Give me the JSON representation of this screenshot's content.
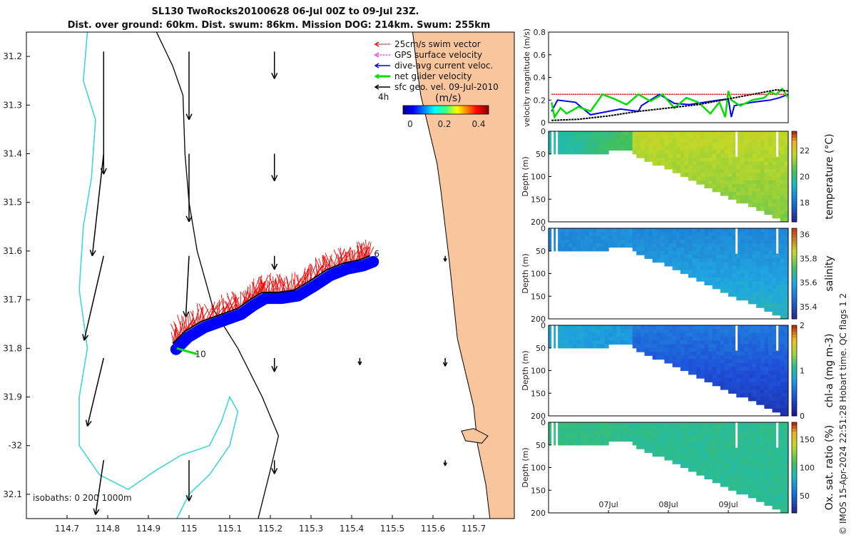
{
  "colors": {
    "land": "#f9c59c",
    "iso0": "#000000",
    "iso200": "#000000",
    "iso1000": "#3ed6e0",
    "swim": "#ff0000",
    "gps": "#ff33ff",
    "dac": "#0000ff",
    "net": "#00e000",
    "geo": "#000000"
  },
  "chart_data": [
    {
      "type": "map",
      "title_line1": "SL130 TwoRocks20100628 06-Jul 00Z to 09-Jul 23Z.",
      "title_line2": "Dist. over ground: 60km. Dist. swum: 86km. Mission DOG: 214km. Swum: 255km",
      "xlim": [
        114.6,
        115.8
      ],
      "ylim": [
        -32.15,
        -31.15
      ],
      "xticks": [
        114.7,
        114.8,
        114.9,
        115.0,
        115.1,
        115.2,
        115.3,
        115.4,
        115.5,
        115.6,
        115.7
      ],
      "xtick_labels": [
        "114.7",
        "114.8",
        "114.9",
        "115",
        "115.1",
        "115.2",
        "115.3",
        "115.4",
        "115.5",
        "115.6",
        "115.7"
      ],
      "yticks": [
        -31.2,
        -31.3,
        -31.4,
        -31.5,
        -31.6,
        -31.7,
        -31.8,
        -31.9,
        -32.0,
        -32.1
      ],
      "ytick_labels": [
        "31.2",
        "31.3",
        "31.4",
        "31.5",
        "31.6",
        "31.7",
        "31.8",
        "31.9",
        "-32",
        "32.1"
      ],
      "legend": [
        {
          "label": "25cm/s swim vector",
          "color": "#ff0000"
        },
        {
          "label": "GPS surface velocity",
          "color": "#ff33ff"
        },
        {
          "label": "dive-avg current veloc.",
          "color": "#0000ff"
        },
        {
          "label": "net glider velocity",
          "color": "#00e000"
        },
        {
          "label": "sfc geo. vel. 09-Jul-2010",
          "color": "#000000"
        }
      ],
      "legend_extra": "4h",
      "colorbar": {
        "label": "(m/s)",
        "ticks": [
          0,
          0.2,
          0.4
        ],
        "tick_labels": [
          "0",
          "0.2",
          "0.4"
        ],
        "range": [
          0,
          0.5
        ]
      },
      "isobath_label": "isobaths: 0   200  1000m",
      "track": [
        [
          114.96,
          -31.79
        ],
        [
          114.99,
          -31.765
        ],
        [
          115.03,
          -31.745
        ],
        [
          115.08,
          -31.73
        ],
        [
          115.12,
          -31.718
        ],
        [
          115.15,
          -31.7
        ],
        [
          115.18,
          -31.685
        ],
        [
          115.22,
          -31.685
        ],
        [
          115.26,
          -31.68
        ],
        [
          115.3,
          -31.66
        ],
        [
          115.34,
          -31.638
        ],
        [
          115.38,
          -31.625
        ],
        [
          115.42,
          -31.618
        ],
        [
          115.445,
          -31.61
        ]
      ],
      "track_labels": [
        {
          "label": "6",
          "lon": 115.455,
          "lat": -31.606
        },
        {
          "label": "10",
          "lon": 115.015,
          "lat": -31.812
        }
      ],
      "net_vector": {
        "lon0": 114.97,
        "lat0": -31.8,
        "lon1": 115.02,
        "lat1": -31.812
      },
      "geo_arrows": [
        {
          "lon": 114.79,
          "lat": -31.19,
          "u": 0.0,
          "v": -0.09
        },
        {
          "lon": 114.79,
          "lat": -31.4,
          "u": -0.007,
          "v": -0.075
        },
        {
          "lon": 114.79,
          "lat": -31.61,
          "u": -0.012,
          "v": -0.062
        },
        {
          "lon": 114.79,
          "lat": -31.82,
          "u": -0.01,
          "v": -0.05
        },
        {
          "lon": 114.79,
          "lat": -32.03,
          "u": -0.005,
          "v": -0.04
        },
        {
          "lon": 115.0,
          "lat": -31.19,
          "u": 0.0,
          "v": -0.05
        },
        {
          "lon": 115.0,
          "lat": -31.4,
          "u": 0.0,
          "v": -0.05
        },
        {
          "lon": 115.0,
          "lat": -31.61,
          "u": -0.002,
          "v": -0.045
        },
        {
          "lon": 115.0,
          "lat": -32.03,
          "u": 0.0,
          "v": -0.03
        },
        {
          "lon": 115.21,
          "lat": -31.19,
          "u": 0.0,
          "v": -0.02
        },
        {
          "lon": 115.21,
          "lat": -31.4,
          "u": 0.0,
          "v": -0.02
        },
        {
          "lon": 115.21,
          "lat": -31.61,
          "u": 0.0,
          "v": -0.01
        },
        {
          "lon": 115.21,
          "lat": -31.82,
          "u": 0.0,
          "v": -0.01
        },
        {
          "lon": 115.21,
          "lat": -32.03,
          "u": 0.0,
          "v": -0.01
        },
        {
          "lon": 115.42,
          "lat": -31.82,
          "u": 0.0,
          "v": -0.005
        },
        {
          "lon": 115.63,
          "lat": -31.61,
          "u": 0.0,
          "v": -0.004
        },
        {
          "lon": 115.63,
          "lat": -31.82,
          "u": 0.0,
          "v": -0.006
        },
        {
          "lon": 115.63,
          "lat": -32.03,
          "u": 0.0,
          "v": -0.004
        }
      ],
      "coast": [
        [
          115.55,
          -31.15
        ],
        [
          115.56,
          -31.22
        ],
        [
          115.57,
          -31.28
        ],
        [
          115.59,
          -31.35
        ],
        [
          115.61,
          -31.42
        ],
        [
          115.62,
          -31.48
        ],
        [
          115.63,
          -31.55
        ],
        [
          115.64,
          -31.62
        ],
        [
          115.65,
          -31.7
        ],
        [
          115.66,
          -31.78
        ],
        [
          115.68,
          -31.85
        ],
        [
          115.7,
          -31.92
        ],
        [
          115.71,
          -32.0
        ],
        [
          115.73,
          -32.08
        ],
        [
          115.74,
          -32.15
        ]
      ],
      "island": [
        [
          115.67,
          -31.97
        ],
        [
          115.7,
          -31.965
        ],
        [
          115.735,
          -31.98
        ],
        [
          115.72,
          -31.995
        ],
        [
          115.68,
          -31.99
        ]
      ],
      "iso200": [
        [
          114.92,
          -31.15
        ],
        [
          114.96,
          -31.22
        ],
        [
          114.985,
          -31.28
        ],
        [
          114.99,
          -31.4
        ],
        [
          115.0,
          -31.5
        ],
        [
          115.02,
          -31.6
        ],
        [
          115.06,
          -31.72
        ],
        [
          115.12,
          -31.8
        ],
        [
          115.18,
          -31.9
        ],
        [
          115.22,
          -31.98
        ],
        [
          115.2,
          -32.05
        ],
        [
          115.17,
          -32.15
        ]
      ],
      "iso1000": [
        [
          114.75,
          -31.15
        ],
        [
          114.74,
          -31.25
        ],
        [
          114.77,
          -31.33
        ],
        [
          114.76,
          -31.45
        ],
        [
          114.74,
          -31.55
        ],
        [
          114.73,
          -31.68
        ],
        [
          114.75,
          -31.8
        ],
        [
          114.73,
          -31.9
        ],
        [
          114.73,
          -32.0
        ],
        [
          114.78,
          -32.06
        ],
        [
          114.85,
          -32.09
        ],
        [
          114.92,
          -32.05
        ],
        [
          114.98,
          -32.02
        ],
        [
          115.05,
          -32.0
        ],
        [
          115.08,
          -31.95
        ],
        [
          115.1,
          -31.9
        ],
        [
          115.12,
          -31.93
        ],
        [
          115.1,
          -32.0
        ],
        [
          115.05,
          -32.06
        ],
        [
          115.0,
          -32.1
        ],
        [
          114.97,
          -32.15
        ]
      ]
    },
    {
      "type": "line",
      "ylabel": "velocity magnitude (m/s)",
      "ylim": [
        0,
        0.8
      ],
      "yticks": [
        0,
        0.2,
        0.4,
        0.6,
        0.8
      ],
      "ytick_labels": [
        "0",
        "0.2",
        "0.4",
        "0.6",
        "0.8"
      ],
      "xlim": [
        0,
        4
      ],
      "series": [
        {
          "name": "swim",
          "color": "#ff0000",
          "x": [
            0.05,
            4.0
          ],
          "values": [
            0.25,
            0.25
          ]
        },
        {
          "name": "dive-avg current",
          "color": "#0000ff",
          "x": [
            0.05,
            0.15,
            0.45,
            0.7,
            1.2,
            1.5,
            1.55,
            1.85,
            2.1,
            2.35,
            2.6,
            2.85,
            3.0,
            3.05,
            3.1,
            3.4,
            3.7,
            3.85,
            4.0
          ],
          "values": [
            0.1,
            0.2,
            0.18,
            0.07,
            0.12,
            0.1,
            0.15,
            0.25,
            0.17,
            0.16,
            0.18,
            0.2,
            0.21,
            0.05,
            0.15,
            0.18,
            0.2,
            0.22,
            0.25
          ]
        },
        {
          "name": "net glider velocity",
          "color": "#00e000",
          "x": [
            0.05,
            0.1,
            0.2,
            0.3,
            0.5,
            0.7,
            0.9,
            1.1,
            1.3,
            1.5,
            1.7,
            1.9,
            2.1,
            2.3,
            2.5,
            2.7,
            2.85,
            2.95,
            3.0,
            3.05,
            3.2,
            3.4,
            3.6,
            3.7,
            3.8,
            3.9,
            4.0
          ],
          "values": [
            0.18,
            0.05,
            0.13,
            0.08,
            0.14,
            0.1,
            0.25,
            0.21,
            0.16,
            0.25,
            0.19,
            0.25,
            0.13,
            0.22,
            0.18,
            0.08,
            0.18,
            0.05,
            0.28,
            0.2,
            0.15,
            0.2,
            0.22,
            0.27,
            0.25,
            0.3,
            0.22
          ]
        },
        {
          "name": "sfc geo. vel.",
          "color": "#000000",
          "x": [
            0.05,
            0.5,
            1.0,
            1.5,
            2.0,
            2.5,
            3.0,
            3.5,
            3.8,
            4.0
          ],
          "values": [
            0.02,
            0.03,
            0.06,
            0.1,
            0.13,
            0.16,
            0.21,
            0.26,
            0.29,
            0.28
          ]
        }
      ]
    },
    {
      "type": "heatmap",
      "variable": "temperature",
      "clabel": "temperature (°C)",
      "ylabel": "Depth (m)",
      "ylim": [
        0,
        200
      ],
      "yticks": [
        0,
        50,
        100,
        150,
        200
      ],
      "ytick_labels": [
        "0",
        "50",
        "100",
        "150",
        "200"
      ],
      "crange": [
        16.5,
        23.5
      ],
      "cticks": [
        18,
        20,
        22
      ],
      "ctick_labels": [
        "18",
        "20",
        "22"
      ],
      "shelf_value": 19.5,
      "shelf_mid_value": 20.5,
      "deep_value": 21.8,
      "deep_bottom_value": 21.0
    },
    {
      "type": "heatmap",
      "variable": "salinity",
      "clabel": "salinity",
      "ylabel": "Depth (m)",
      "ylim": [
        0,
        200
      ],
      "yticks": [
        0,
        50,
        100,
        150,
        200
      ],
      "ytick_labels": [
        "0",
        "50",
        "100",
        "150",
        "200"
      ],
      "crange": [
        35.3,
        36.05
      ],
      "cticks": [
        35.4,
        35.6,
        35.8,
        36.0
      ],
      "ctick_labels": [
        "35.4",
        "35.6",
        "35.8",
        "36"
      ],
      "shelf_value": 35.52,
      "shelf_mid_value": 35.55,
      "deep_value": 35.52,
      "deep_bottom_value": 35.65
    },
    {
      "type": "heatmap",
      "variable": "chl-a",
      "clabel": "chl-a (mg m-3)",
      "ylabel": "Depth (m)",
      "ylim": [
        0,
        200
      ],
      "yticks": [
        0,
        50,
        100,
        150,
        200
      ],
      "ytick_labels": [
        "0",
        "50",
        "100",
        "150",
        "200"
      ],
      "crange": [
        0,
        2
      ],
      "cticks": [
        0,
        1,
        2
      ],
      "ctick_labels": [
        "0",
        "1",
        "2"
      ],
      "shelf_value": 0.85,
      "shelf_mid_value": 0.75,
      "deep_value": 0.6,
      "deep_bottom_value": 0.2
    },
    {
      "type": "heatmap",
      "variable": "oxygen",
      "clabel": "Ox. sat. ratio (%)",
      "ylabel": "Depth (m)",
      "ylim": [
        0,
        200
      ],
      "yticks": [
        0,
        50,
        100,
        150,
        200
      ],
      "ytick_labels": [
        "0",
        "50",
        "100",
        "150",
        "200"
      ],
      "crange": [
        20,
        180
      ],
      "cticks": [
        50,
        100,
        150
      ],
      "ctick_labels": [
        "50",
        "100",
        "150"
      ],
      "shelf_value": 100,
      "shelf_mid_value": 98,
      "deep_value": 97,
      "deep_bottom_value": 95,
      "xticks": [
        1,
        2,
        3
      ],
      "xtick_labels": [
        "07Jul",
        "08Jul",
        "09Jul"
      ],
      "xlim": [
        0,
        4
      ]
    }
  ],
  "footer": {
    "copyright": "© IMOS 15-Apr-2024 22:51:28 Hobart time. QC flags 1  2"
  }
}
